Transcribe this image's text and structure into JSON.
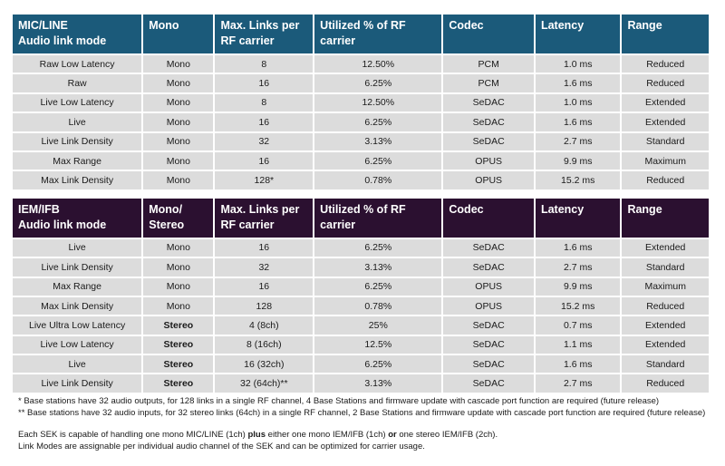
{
  "table1": {
    "headers": [
      "MIC/LINE\nAudio link mode",
      "Mono",
      "Max. Links per\nRF carrier",
      "Utilized % of RF\ncarrier",
      "Codec",
      "Latency",
      "Range"
    ],
    "rows": [
      [
        "Raw Low Latency",
        "Mono",
        "8",
        "12.50%",
        "PCM",
        "1.0 ms",
        "Reduced"
      ],
      [
        "Raw",
        "Mono",
        "16",
        "6.25%",
        "PCM",
        "1.6 ms",
        "Reduced"
      ],
      [
        "Live Low Latency",
        "Mono",
        "8",
        "12.50%",
        "SeDAC",
        "1.0 ms",
        "Extended"
      ],
      [
        "Live",
        "Mono",
        "16",
        "6.25%",
        "SeDAC",
        "1.6 ms",
        "Extended"
      ],
      [
        "Live Link Density",
        "Mono",
        "32",
        "3.13%",
        "SeDAC",
        "2.7 ms",
        "Standard"
      ],
      [
        "Max Range",
        "Mono",
        "16",
        "6.25%",
        "OPUS",
        "9.9 ms",
        "Maximum"
      ],
      [
        "Max Link Density",
        "Mono",
        "128*",
        "0.78%",
        "OPUS",
        "15.2 ms",
        "Reduced"
      ]
    ]
  },
  "table2": {
    "headers": [
      "IEM/IFB\nAudio link mode",
      "Mono/\nStereo",
      "Max. Links per\nRF carrier",
      "Utilized % of RF\ncarrier",
      "Codec",
      "Latency",
      "Range"
    ],
    "rows": [
      [
        "Live",
        "Mono",
        "16",
        "6.25%",
        "SeDAC",
        "1.6 ms",
        "Extended"
      ],
      [
        "Live Link Density",
        "Mono",
        "32",
        "3.13%",
        "SeDAC",
        "2.7 ms",
        "Standard"
      ],
      [
        "Max Range",
        "Mono",
        "16",
        "6.25%",
        "OPUS",
        "9.9 ms",
        "Maximum"
      ],
      [
        "Max Link Density",
        "Mono",
        "128",
        "0.78%",
        "OPUS",
        "15.2 ms",
        "Reduced"
      ],
      [
        "Live Ultra Low Latency",
        "Stereo",
        "4 (8ch)",
        "25%",
        "SeDAC",
        "0.7 ms",
        "Extended"
      ],
      [
        "Live Low Latency",
        "Stereo",
        "8 (16ch)",
        "12.5%",
        "SeDAC",
        "1.1 ms",
        "Extended"
      ],
      [
        "Live",
        "Stereo",
        "16 (32ch)",
        "6.25%",
        "SeDAC",
        "1.6 ms",
        "Standard"
      ],
      [
        "Live Link Density",
        "Stereo",
        "32 (64ch)**",
        "3.13%",
        "SeDAC",
        "2.7 ms",
        "Reduced"
      ]
    ]
  },
  "footnotes": [
    "* Base stations have 32 audio outputs, for 128 links in a single RF channel, 4 Base Stations and firmware update with cascade port function are required (future release)",
    "** Base stations have 32 audio inputs, for 32 stereo links (64ch) in a single RF channel, 2 Base Stations and firmware update with cascade port function are required (future release)"
  ],
  "notes": {
    "line1_a": "Each SEK is capable of handling one mono MIC/LINE (1ch) ",
    "line1_b": "plus",
    "line1_c": " either one mono IEM/IFB (1ch) ",
    "line1_d": "or",
    "line1_e": " one stereo IEM/IFB (2ch).",
    "line2": "Link Modes are assignable per individual audio channel of the SEK and can be optimized for carrier usage."
  },
  "colors": {
    "header1": "#1b5a7a",
    "header2": "#2b1030",
    "cell": "#dcdcdc"
  }
}
